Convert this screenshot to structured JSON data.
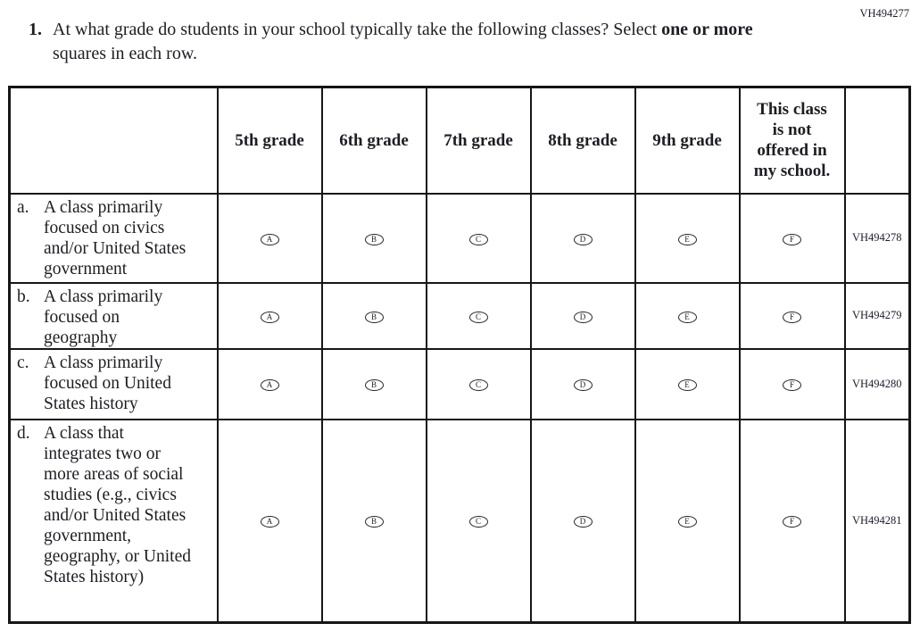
{
  "page": {
    "code_top_right": "VH494277"
  },
  "question": {
    "number": "1.",
    "text_before_bold": "At what grade do students in your school typically take the following classes? Select",
    "bold_text": "one or more",
    "text_after_bold": " squares in each row."
  },
  "table": {
    "column_headers": [
      "5th grade",
      "6th grade",
      "7th grade",
      "8th grade",
      "9th grade",
      "This class is not offered in my school."
    ],
    "options": [
      "A",
      "B",
      "C",
      "D",
      "E",
      "F"
    ],
    "rows": [
      {
        "letter": "a.",
        "label": "A class primarily focused on civics and/or United States government",
        "code": "VH494278"
      },
      {
        "letter": "b.",
        "label": "A class primarily focused on geography",
        "code": "VH494279"
      },
      {
        "letter": "c.",
        "label": "A class primarily focused on United States history",
        "code": "VH494280"
      },
      {
        "letter": "d.",
        "label": "A class that integrates two or more areas of social studies (e.g., civics and/or United States government, geography, or United States history)",
        "code": "VH494281"
      }
    ]
  },
  "colors": {
    "ink": "#1d1d24",
    "border": "#161616",
    "background": "#ffffff"
  }
}
